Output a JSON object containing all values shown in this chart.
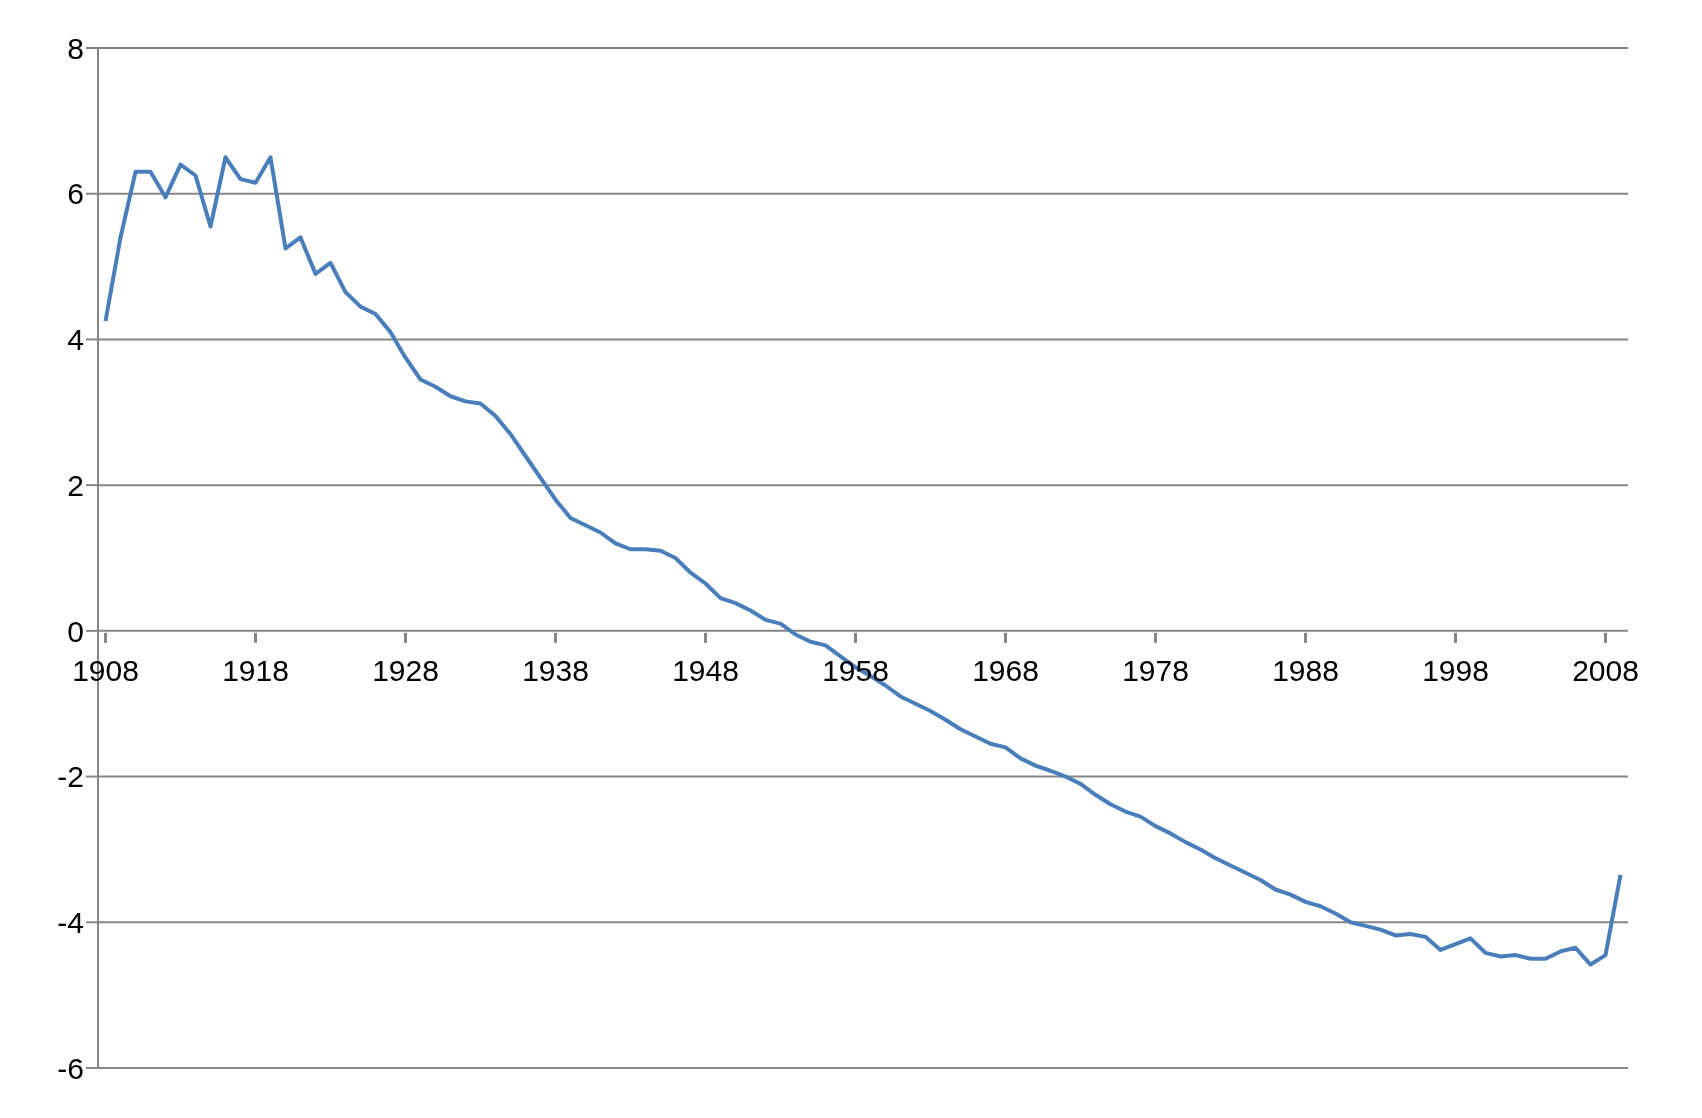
{
  "chart_data": {
    "type": "line",
    "x": [
      1908,
      1909,
      1910,
      1911,
      1912,
      1913,
      1914,
      1915,
      1916,
      1917,
      1918,
      1919,
      1920,
      1921,
      1922,
      1923,
      1924,
      1925,
      1926,
      1927,
      1928,
      1929,
      1930,
      1931,
      1932,
      1933,
      1934,
      1935,
      1936,
      1937,
      1938,
      1939,
      1940,
      1941,
      1942,
      1943,
      1944,
      1945,
      1946,
      1947,
      1948,
      1949,
      1950,
      1951,
      1952,
      1953,
      1954,
      1955,
      1956,
      1957,
      1958,
      1959,
      1960,
      1961,
      1962,
      1963,
      1964,
      1965,
      1966,
      1967,
      1968,
      1969,
      1970,
      1971,
      1972,
      1973,
      1974,
      1975,
      1976,
      1977,
      1978,
      1979,
      1980,
      1981,
      1982,
      1983,
      1984,
      1985,
      1986,
      1987,
      1988,
      1989,
      1990,
      1991,
      1992,
      1993,
      1994,
      1995,
      1996,
      1997,
      1998,
      1999,
      2000,
      2001,
      2002,
      2003,
      2004,
      2005,
      2006,
      2007,
      2008,
      2009
    ],
    "series": [
      {
        "color": "#4a7ebb",
        "values": [
          4.25,
          5.4,
          6.3,
          6.3,
          5.95,
          6.4,
          6.25,
          5.55,
          6.5,
          6.2,
          6.15,
          6.5,
          5.25,
          5.4,
          4.9,
          5.05,
          4.65,
          4.45,
          4.35,
          4.1,
          3.75,
          3.45,
          3.35,
          3.22,
          3.15,
          3.12,
          2.95,
          2.7,
          2.4,
          2.1,
          1.8,
          1.55,
          1.45,
          1.35,
          1.2,
          1.12,
          1.12,
          1.1,
          1.0,
          0.8,
          0.65,
          0.45,
          0.38,
          0.28,
          0.15,
          0.1,
          -0.05,
          -0.15,
          -0.2,
          -0.35,
          -0.5,
          -0.62,
          -0.75,
          -0.9,
          -1.0,
          -1.1,
          -1.22,
          -1.35,
          -1.45,
          -1.55,
          -1.6,
          -1.75,
          -1.85,
          -1.92,
          -2.0,
          -2.1,
          -2.25,
          -2.38,
          -2.48,
          -2.55,
          -2.68,
          -2.78,
          -2.9,
          -3.0,
          -3.12,
          -3.22,
          -3.32,
          -3.42,
          -3.55,
          -3.62,
          -3.72,
          -3.78,
          -3.88,
          -4.0,
          -4.05,
          -4.1,
          -4.18,
          -4.16,
          -4.2,
          -4.38,
          -4.3,
          -4.22,
          -4.42,
          -4.47,
          -4.45,
          -4.5,
          -4.5,
          -4.4,
          -4.35,
          -4.58,
          -4.45,
          -3.35
        ]
      }
    ],
    "xlim": [
      1907.5,
      2009.5
    ],
    "xticks": [
      1908,
      1918,
      1928,
      1938,
      1948,
      1958,
      1968,
      1978,
      1988,
      1998,
      2008
    ],
    "ylim": [
      -6,
      8
    ],
    "yticks": [
      -6,
      -4,
      -2,
      0,
      2,
      4,
      6,
      8
    ],
    "grid": "y",
    "marker": "none",
    "line_style": "solid"
  }
}
